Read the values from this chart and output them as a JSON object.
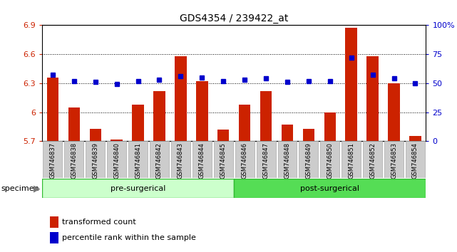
{
  "title": "GDS4354 / 239422_at",
  "categories": [
    "GSM746837",
    "GSM746838",
    "GSM746839",
    "GSM746840",
    "GSM746841",
    "GSM746842",
    "GSM746843",
    "GSM746844",
    "GSM746845",
    "GSM746846",
    "GSM746847",
    "GSM746848",
    "GSM746849",
    "GSM746850",
    "GSM746851",
    "GSM746852",
    "GSM746853",
    "GSM746854"
  ],
  "bar_values": [
    6.36,
    6.05,
    5.83,
    5.72,
    6.08,
    6.22,
    6.58,
    6.32,
    5.82,
    6.08,
    6.22,
    5.87,
    5.83,
    6.0,
    6.87,
    6.58,
    6.3,
    5.75
  ],
  "dot_values": [
    57,
    52,
    51,
    49,
    52,
    53,
    56,
    55,
    52,
    53,
    54,
    51,
    52,
    52,
    72,
    57,
    54,
    50
  ],
  "bar_color": "#cc2200",
  "dot_color": "#0000cc",
  "ylim_left": [
    5.7,
    6.9
  ],
  "ylim_right": [
    0,
    100
  ],
  "yticks_left": [
    5.7,
    6.0,
    6.3,
    6.6,
    6.9
  ],
  "yticks_right": [
    0,
    25,
    50,
    75,
    100
  ],
  "ytick_labels_left": [
    "5.7",
    "6",
    "6.3",
    "6.6",
    "6.9"
  ],
  "ytick_labels_right": [
    "0",
    "25",
    "50",
    "75",
    "100%"
  ],
  "group1_label": "pre-surgerical",
  "group2_label": "post-surgerical",
  "group1_count": 9,
  "group2_count": 9,
  "group1_color": "#ccffcc",
  "group2_color": "#55dd55",
  "specimen_label": "specimen",
  "legend1_label": "transformed count",
  "legend2_label": "percentile rank within the sample",
  "bar_bottom": 5.7,
  "gridline_values": [
    6.0,
    6.3,
    6.6
  ],
  "bar_color_red": "#cc2200",
  "dot_color_blue": "#0000cc",
  "tick_bg": "#cccccc",
  "tick_edge": "#aaaaaa"
}
